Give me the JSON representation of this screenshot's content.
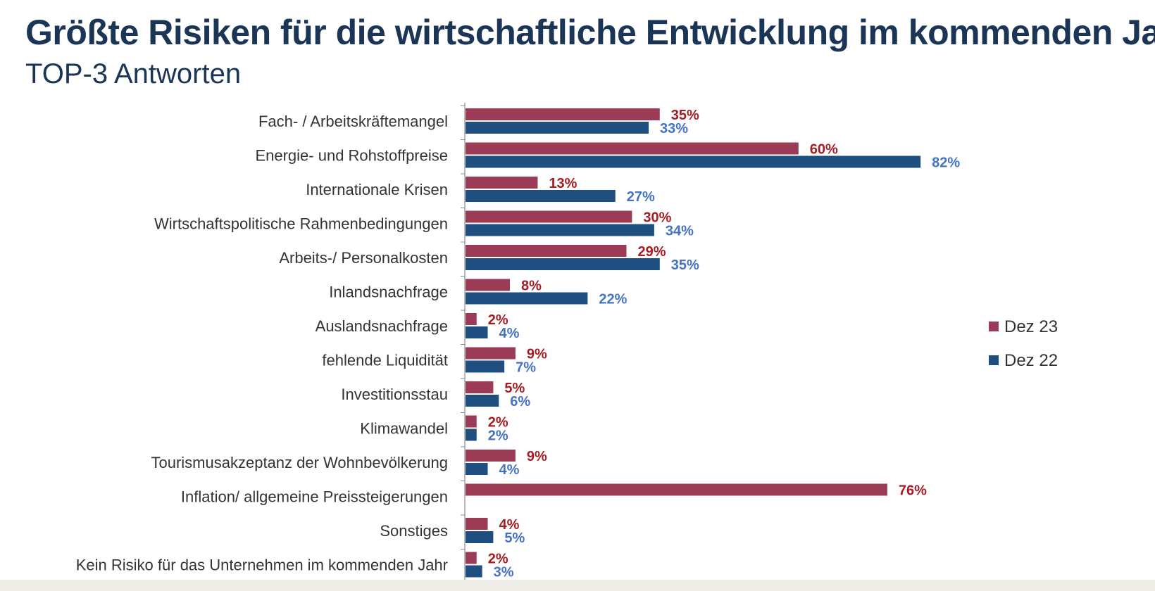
{
  "chart_data": {
    "type": "bar",
    "orientation": "horizontal",
    "title": "Größte Risiken für die wirtschaftliche Entwicklung im kommenden Jahr",
    "subtitle": "TOP-3 Antworten",
    "xlabel": "",
    "ylabel": "",
    "xlim": [
      0,
      85
    ],
    "grid": false,
    "legend_position": "right",
    "categories": [
      "Fach- / Arbeitskräftemangel",
      "Energie- und Rohstoffpreise",
      "Internationale Krisen",
      "Wirtschaftspolitische Rahmenbedingungen",
      "Arbeits-/ Personalkosten",
      "Inlandsnachfrage",
      "Auslandsnachfrage",
      "fehlende Liquidität",
      "Investitionsstau",
      "Klimawandel",
      "Tourismusakzeptanz der Wohnbevölkerung",
      "Inflation/ allgemeine Preissteigerungen",
      "Sonstiges",
      "Kein Risiko für das Unternehmen im kommenden Jahr"
    ],
    "series": [
      {
        "name": "Dez 23",
        "color": "#9b3b55",
        "label_color": "#a51d24",
        "values": [
          35,
          60,
          13,
          30,
          29,
          8,
          2,
          9,
          5,
          2,
          9,
          76,
          4,
          2
        ],
        "labels": [
          "35%",
          "60%",
          "13%",
          "30%",
          "29%",
          "8%",
          "2%",
          "9%",
          "5%",
          "2%",
          "9%",
          "76%",
          "4%",
          "2%"
        ]
      },
      {
        "name": "Dez 22",
        "color": "#1f4e80",
        "label_color": "#4472c4",
        "values": [
          33,
          82,
          27,
          34,
          35,
          22,
          4,
          7,
          6,
          2,
          4,
          null,
          5,
          3
        ],
        "labels": [
          "33%",
          "82%",
          "27%",
          "34%",
          "35%",
          "22%",
          "4%",
          "7%",
          "6%",
          "2%",
          "4%",
          "",
          "5%",
          "3%"
        ]
      }
    ]
  }
}
